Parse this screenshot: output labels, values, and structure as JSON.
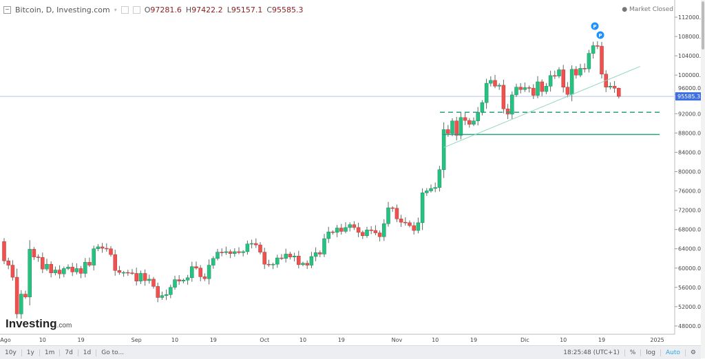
{
  "header": {
    "title": "Bitcoin, D, Investing.com",
    "o_label": "O",
    "o": "97281.6",
    "h_label": "H",
    "h": "97422.2",
    "l_label": "L",
    "l": "95157.1",
    "c_label": "C",
    "c": "95585.3"
  },
  "status": "Market Closed",
  "logo": {
    "name": "Investing",
    "suffix": ".com"
  },
  "toolbar": {
    "ranges": [
      "10y",
      "1y",
      "1m",
      "7d",
      "1d",
      "Go to..."
    ],
    "time": "18:25:48 (UTC+1)",
    "percent": "%",
    "log": "log",
    "auto": "Auto"
  },
  "colors": {
    "up": "#26c281",
    "down": "#f0514f",
    "line": "#2a9d80",
    "price_tag": "#3d6fe0"
  },
  "chart_data": {
    "type": "candlestick",
    "title": "Bitcoin, D, Investing.com",
    "ylim": [
      46000,
      114000
    ],
    "yticks": [
      "112000.0",
      "108000.0",
      "104000.0",
      "100000.0",
      "96000.0",
      "92000.0",
      "88000.0",
      "84000.0",
      "80000.0",
      "76000.0",
      "72000.0",
      "68000.0",
      "64000.0",
      "60000.0",
      "56000.0",
      "52000.0",
      "48000.0"
    ],
    "xticks": [
      {
        "label": "Ago",
        "day": 0
      },
      {
        "label": "10",
        "day": 9
      },
      {
        "label": "19",
        "day": 18
      },
      {
        "label": "Sep",
        "day": 31
      },
      {
        "label": "10",
        "day": 40
      },
      {
        "label": "19",
        "day": 49
      },
      {
        "label": "Oct",
        "day": 61
      },
      {
        "label": "10",
        "day": 70
      },
      {
        "label": "19",
        "day": 79
      },
      {
        "label": "Nov",
        "day": 92
      },
      {
        "label": "10",
        "day": 101
      },
      {
        "label": "19",
        "day": 110
      },
      {
        "label": "Dic",
        "day": 122
      },
      {
        "label": "10",
        "day": 131
      },
      {
        "label": "19",
        "day": 140
      },
      {
        "label": "2025",
        "day": 153
      }
    ],
    "first_open": 65500,
    "closes": [
      61500,
      60600,
      58100,
      50500,
      54600,
      54000,
      63900,
      62300,
      62200,
      59800,
      60800,
      59000,
      59600,
      58800,
      59900,
      60200,
      59200,
      59900,
      58900,
      61200,
      60600,
      64000,
      64400,
      64100,
      64000,
      62800,
      59500,
      59100,
      59100,
      59000,
      58900,
      57300,
      58900,
      57400,
      57700,
      56200,
      53900,
      54300,
      54500,
      56000,
      57600,
      57300,
      57500,
      58000,
      60300,
      60000,
      58200,
      57800,
      60600,
      62000,
      63300,
      63200,
      63400,
      63000,
      63400,
      63200,
      63400,
      65000,
      65100,
      64800,
      63300,
      60800,
      60700,
      60800,
      62100,
      62000,
      62900,
      62300,
      62500,
      60700,
      61000,
      60600,
      62400,
      63200,
      62900,
      66100,
      67500,
      67400,
      68300,
      67600,
      68400,
      69000,
      68400,
      67400,
      66700,
      67900,
      67800,
      67300,
      66500,
      69200,
      72500,
      72400,
      70200,
      69500,
      69400,
      68800,
      67800,
      69400,
      75600,
      76000,
      76500,
      76700,
      80400,
      88700,
      87900,
      90500,
      87500,
      91200,
      90600,
      89800,
      90500,
      92300,
      94300,
      98300,
      98900,
      97700,
      97900,
      93000,
      91900,
      95900,
      97500,
      97000,
      97400,
      97300,
      95800,
      98600,
      96600,
      97700,
      99900,
      99800,
      101100,
      97500,
      96000,
      101200,
      100000,
      101400,
      101300,
      104500,
      106100,
      106000,
      100200,
      97500,
      97700,
      97281.6,
      95585.3
    ],
    "last_candle": {
      "open": 97281.6,
      "high": 97422.2,
      "low": 95157.1,
      "close": 95585.3
    },
    "current_price": "95585.3",
    "annotations": {
      "dashed_support": 92300,
      "solid_support": 87700,
      "trendline": [
        {
          "day": 103,
          "price": 85000
        },
        {
          "day": 149,
          "price": 101800
        }
      ],
      "markers": [
        "P",
        "P"
      ]
    }
  }
}
